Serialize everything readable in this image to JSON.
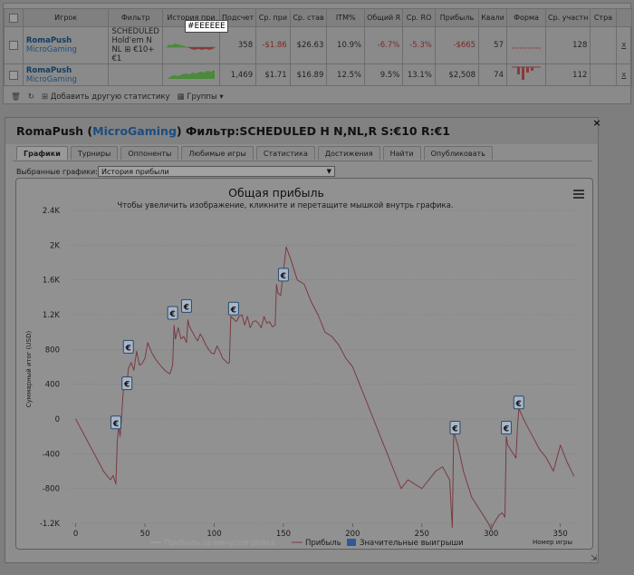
{
  "stats": {
    "headers": [
      "",
      "Игрок",
      "Фильтр",
      "История при",
      "Подсчет",
      "Ср. при",
      "Ср. став",
      "ITM%",
      "Общий R",
      "Ср. RO",
      "Прибыль",
      "Квали",
      "Форма",
      "Ср. участн",
      "Стра",
      ""
    ],
    "tooltip": "#EEEEEE",
    "rows": [
      {
        "name": "RomaPush",
        "site": "MicroGaming",
        "filter": "SCHEDULED Hold'em N NL ⊞ €10+ €1",
        "count": "358",
        "avg_profit": "-$1.86",
        "avg_stake": "$26.63",
        "itm": "10.9%",
        "total_roi": "-6.7%",
        "avg_roi": "-5.3%",
        "profit": "-$665",
        "qual": "57",
        "avg_entrants": "128",
        "close": "x"
      },
      {
        "name": "RomaPush",
        "site": "MicroGaming",
        "filter": "",
        "count": "1,469",
        "avg_profit": "$1.71",
        "avg_stake": "$16.89",
        "itm": "12.5%",
        "total_roi": "9.5%",
        "avg_roi": "13.1%",
        "profit": "$2,508",
        "qual": "74",
        "avg_entrants": "112",
        "close": "x"
      }
    ],
    "footer_add": "Добавить другую статистику",
    "footer_groups": "Группы"
  },
  "window": {
    "player": "RomaPush",
    "site": "MicroGaming",
    "filter_text": "Фильтр:SCHEDULED H N,NL,R S:€10 R:€1",
    "close": "×",
    "tabs": [
      "Графики",
      "Турниры",
      "Оппоненты",
      "Любимые игры",
      "Статистика",
      "Достижения",
      "Найти",
      "Опубликовать"
    ],
    "active_tab": 0,
    "select_label": "Выбранные графики:",
    "select_value": "История прибыли"
  },
  "colors": {
    "line": "#7a3a42",
    "faint_line": "#a8a8a8",
    "marker_fill": "#a9b6c8",
    "marker_stroke": "#2a4a6a",
    "legend_blue": "#2b5c9a"
  },
  "chart_data": {
    "type": "line",
    "title": "Общая прибыль",
    "subtitle": "Чтобы увеличить изображение, кликните и перетащите мышкой внутрь графика.",
    "ylabel": "Суммарный итог (USD)",
    "xlabel": "Номер игры",
    "xlim": [
      -5,
      362
    ],
    "ylim": [
      -1200,
      2400
    ],
    "xticks": [
      0,
      50,
      100,
      150,
      200,
      250,
      300,
      350
    ],
    "yticks": [
      -1200,
      -800,
      -400,
      0,
      400,
      800,
      1200,
      1600,
      2000,
      2400
    ],
    "ytick_labels": [
      "-1.2K",
      "-800",
      "-400",
      "0",
      "400",
      "800",
      "1.2K",
      "1.6K",
      "2K",
      "2.4K"
    ],
    "grid": true,
    "legend_position": "bottom",
    "legend": [
      "Прибыль за минусом рейка",
      "Прибыль",
      "Значительные выигрыши"
    ],
    "series": [
      {
        "name": "Прибыль",
        "x": [
          0,
          5,
          10,
          15,
          20,
          25,
          27,
          29,
          30,
          31,
          32,
          33,
          34,
          35,
          37,
          38,
          40,
          42,
          44,
          46,
          48,
          50,
          52,
          55,
          58,
          62,
          65,
          68,
          70,
          71,
          72,
          74,
          76,
          78,
          80,
          81,
          82,
          84,
          86,
          88,
          90,
          92,
          94,
          96,
          98,
          100,
          102,
          104,
          106,
          108,
          110,
          111,
          112,
          114,
          116,
          118,
          120,
          122,
          124,
          126,
          128,
          130,
          132,
          134,
          136,
          138,
          140,
          142,
          144,
          145,
          146,
          148,
          150,
          152,
          155,
          160,
          165,
          170,
          175,
          180,
          185,
          190,
          195,
          200,
          205,
          210,
          215,
          220,
          225,
          230,
          235,
          240,
          245,
          250,
          255,
          260,
          265,
          270,
          272,
          273,
          274,
          276,
          278,
          280,
          282,
          284,
          286,
          288,
          290,
          292,
          294,
          296,
          298,
          300,
          302,
          304,
          306,
          308,
          310,
          311,
          312,
          314,
          316,
          318,
          319,
          320,
          322,
          325,
          330,
          335,
          340,
          345,
          350,
          355,
          360
        ],
        "y": [
          0,
          -150,
          -300,
          -450,
          -600,
          -700,
          -650,
          -750,
          -250,
          -80,
          -200,
          0,
          250,
          420,
          380,
          580,
          650,
          560,
          780,
          620,
          640,
          700,
          880,
          760,
          680,
          600,
          550,
          520,
          620,
          1080,
          920,
          1050,
          920,
          950,
          880,
          1140,
          1070,
          1010,
          950,
          900,
          980,
          920,
          850,
          800,
          760,
          750,
          840,
          780,
          700,
          670,
          640,
          650,
          1180,
          1150,
          1120,
          1180,
          1200,
          1080,
          1180,
          1050,
          1120,
          1130,
          1100,
          1050,
          1180,
          1100,
          1120,
          1060,
          1080,
          1550,
          1450,
          1420,
          1700,
          1980,
          1850,
          1600,
          1550,
          1350,
          1200,
          1000,
          950,
          850,
          700,
          600,
          400,
          200,
          0,
          -200,
          -400,
          -600,
          -800,
          -700,
          -750,
          -800,
          -700,
          -600,
          -550,
          -700,
          -1250,
          -100,
          -200,
          -300,
          -450,
          -600,
          -700,
          -800,
          -900,
          -950,
          -1000,
          -1050,
          -1100,
          -1150,
          -1200,
          -1270,
          -1200,
          -1150,
          -1100,
          -1080,
          -1130,
          -200,
          -300,
          -350,
          -400,
          -450,
          -100,
          120,
          50,
          -50,
          -200,
          -350,
          -450,
          -600,
          -300,
          -500,
          -660
        ]
      }
    ],
    "big_wins": [
      [
        29,
        -50
      ],
      [
        37,
        400
      ],
      [
        38,
        820
      ],
      [
        70,
        1210
      ],
      [
        80,
        1290
      ],
      [
        114,
        1260
      ],
      [
        150,
        1650
      ],
      [
        274,
        -110
      ],
      [
        311,
        -110
      ],
      [
        320,
        180
      ]
    ],
    "big_win_symbol": "€"
  }
}
